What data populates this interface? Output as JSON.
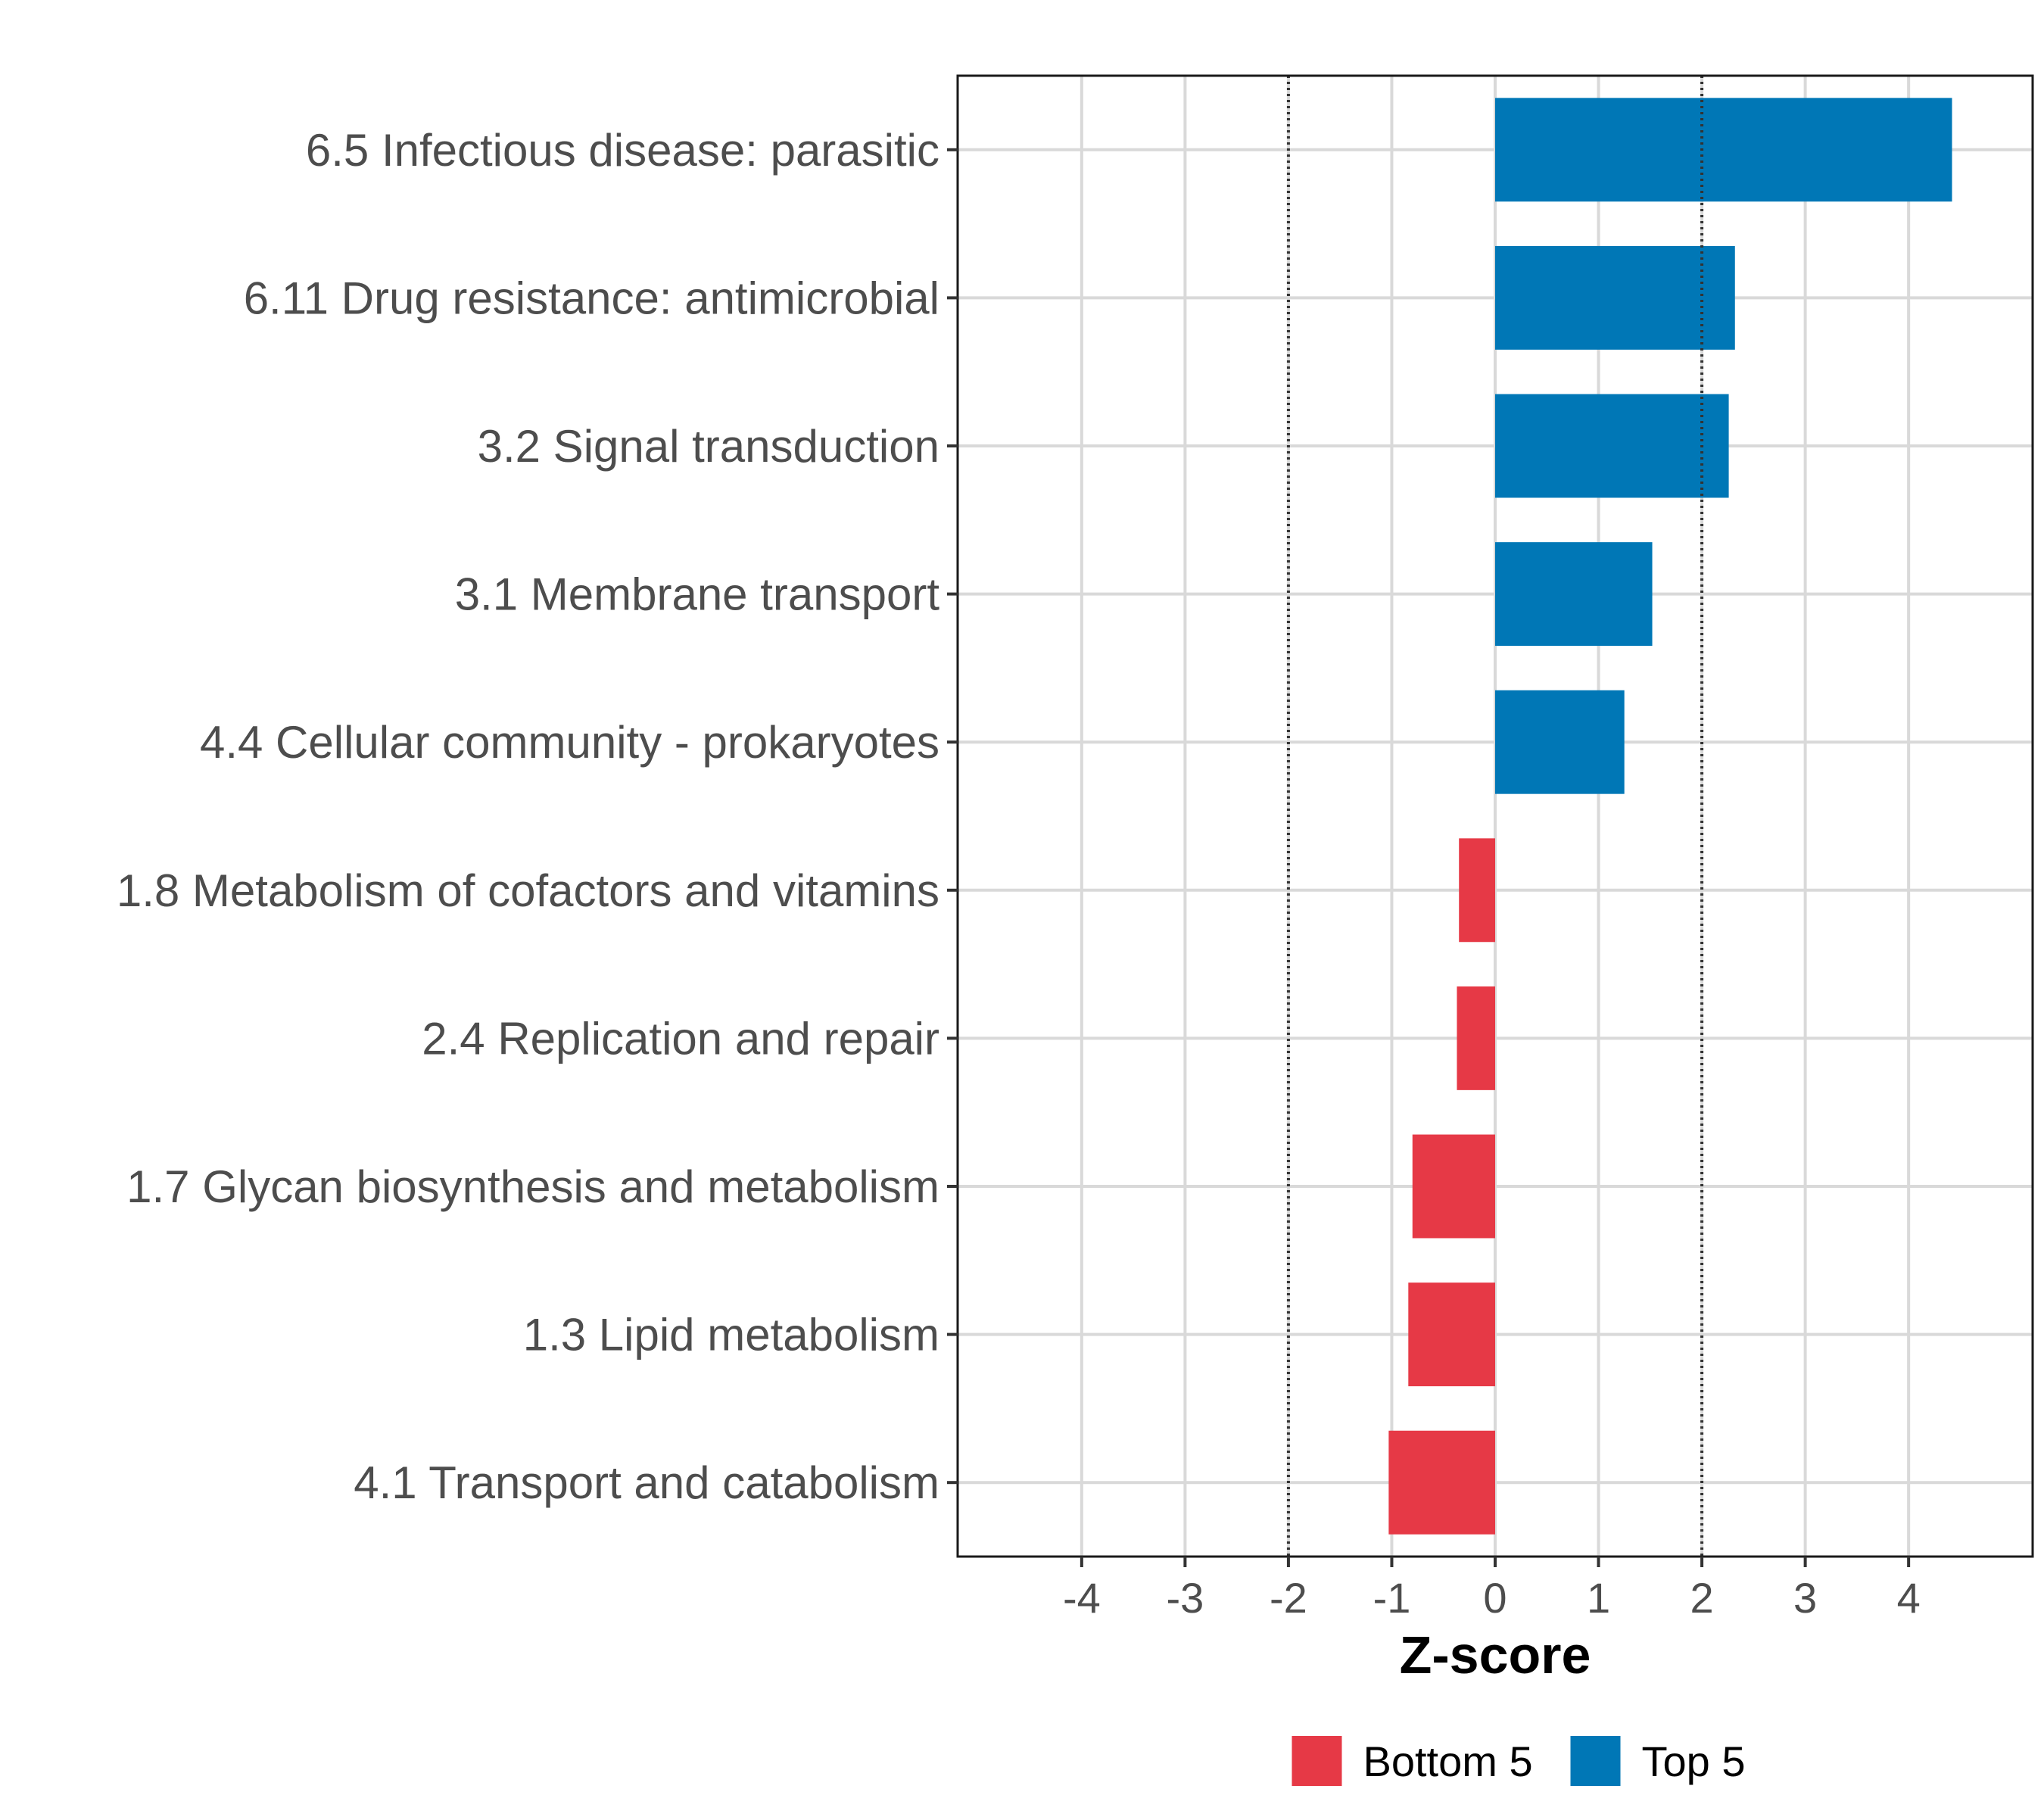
{
  "chart_data": {
    "type": "bar",
    "orientation": "horizontal",
    "xlabel": "Z-score",
    "ylabel": "",
    "xlim": [
      -5.2,
      5.2
    ],
    "x_ticks": [
      -4,
      -3,
      -2,
      -1,
      0,
      1,
      2,
      3,
      4
    ],
    "x_tick_labels": [
      "-4",
      "-3",
      "-2",
      "-1",
      "0",
      "1",
      "2",
      "3",
      "4"
    ],
    "reference_lines": [
      -2,
      2
    ],
    "categories": [
      "6.5 Infectious disease: parasitic",
      "6.11 Drug resistance: antimicrobial",
      "3.2 Signal transduction",
      "3.1 Membrane transport",
      "4.4 Cellular community - prokaryotes",
      "1.8 Metabolism of cofactors and vitamins",
      "2.4 Replication and repair",
      "1.7 Glycan biosynthesis and metabolism",
      "1.3 Lipid metabolism",
      "4.1 Transport and catabolism"
    ],
    "values": [
      4.42,
      2.32,
      2.26,
      1.52,
      1.25,
      -0.35,
      -0.37,
      -0.8,
      -0.84,
      -1.03
    ],
    "groups": [
      "Top 5",
      "Top 5",
      "Top 5",
      "Top 5",
      "Top 5",
      "Bottom 5",
      "Bottom 5",
      "Bottom 5",
      "Bottom 5",
      "Bottom 5"
    ],
    "legend": [
      {
        "label": "Bottom 5",
        "color": "#e63946"
      },
      {
        "label": "Top 5",
        "color": "#0077b6"
      }
    ],
    "legend_position": "bottom",
    "grid": true
  }
}
